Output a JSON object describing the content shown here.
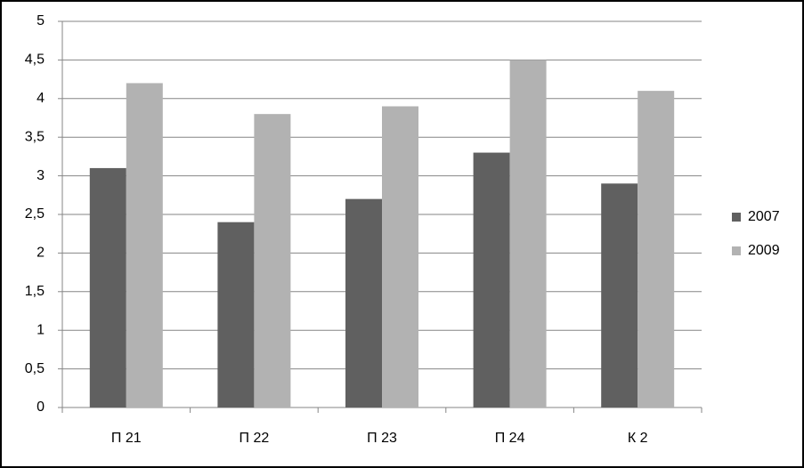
{
  "chart_data": {
    "type": "bar",
    "categories": [
      "П 21",
      "П 22",
      "П 23",
      "П 24",
      "К 2"
    ],
    "series": [
      {
        "name": "2007",
        "color": "#606060",
        "values": [
          3.1,
          2.4,
          2.7,
          3.3,
          2.9
        ]
      },
      {
        "name": "2009",
        "color": "#b2b2b2",
        "values": [
          4.2,
          3.8,
          3.9,
          4.5,
          4.1
        ]
      }
    ],
    "ylim": [
      0,
      5
    ],
    "yticks": [
      0,
      {
        "value": 0.5,
        "label": "0,5"
      },
      1,
      {
        "value": 1.5,
        "label": "1,5"
      },
      2,
      {
        "value": 2.5,
        "label": "2,5"
      },
      3,
      {
        "value": 3.5,
        "label": "3,5"
      },
      4,
      {
        "value": 4.5,
        "label": "4,5"
      },
      5
    ],
    "grid": true,
    "legend": "right"
  }
}
